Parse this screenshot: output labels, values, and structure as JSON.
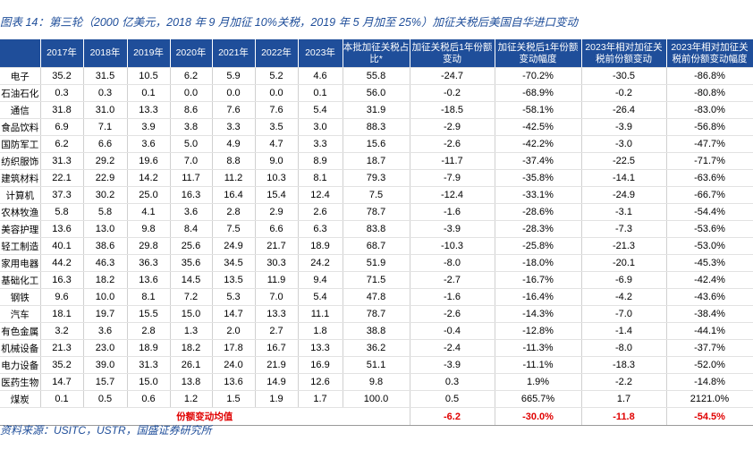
{
  "title": "图表 14：第三轮（2000 亿美元，2018 年 9 月加征 10%关税，2019 年 5 月加至 25%）加征关税后美国自华进口变动",
  "table": {
    "header": [
      "",
      "2017年",
      "2018年",
      "2019年",
      "2020年",
      "2021年",
      "2022年",
      "2023年",
      "本批加征关税占比*",
      "加征关税后1年份额变动",
      "加征关税后1年份额变动幅度",
      "2023年相对加征关税前份额变动",
      "2023年相对加征关税前份额变动幅度"
    ],
    "rows": [
      [
        "电子",
        "35.2",
        "31.5",
        "10.5",
        "6.2",
        "5.9",
        "5.2",
        "4.6",
        "55.8",
        "-24.7",
        "-70.2%",
        "-30.5",
        "-86.8%"
      ],
      [
        "石油石化",
        "0.3",
        "0.3",
        "0.1",
        "0.0",
        "0.0",
        "0.0",
        "0.1",
        "56.0",
        "-0.2",
        "-68.9%",
        "-0.2",
        "-80.8%"
      ],
      [
        "通信",
        "31.8",
        "31.0",
        "13.3",
        "8.6",
        "7.6",
        "7.6",
        "5.4",
        "31.9",
        "-18.5",
        "-58.1%",
        "-26.4",
        "-83.0%"
      ],
      [
        "食品饮料",
        "6.9",
        "7.1",
        "3.9",
        "3.8",
        "3.3",
        "3.5",
        "3.0",
        "88.3",
        "-2.9",
        "-42.5%",
        "-3.9",
        "-56.8%"
      ],
      [
        "国防军工",
        "6.2",
        "6.6",
        "3.6",
        "5.0",
        "4.9",
        "4.7",
        "3.3",
        "15.6",
        "-2.6",
        "-42.2%",
        "-3.0",
        "-47.7%"
      ],
      [
        "纺织服饰",
        "31.3",
        "29.2",
        "19.6",
        "7.0",
        "8.8",
        "9.0",
        "8.9",
        "18.7",
        "-11.7",
        "-37.4%",
        "-22.5",
        "-71.7%"
      ],
      [
        "建筑材料",
        "22.1",
        "22.9",
        "14.2",
        "11.7",
        "11.2",
        "10.3",
        "8.1",
        "79.3",
        "-7.9",
        "-35.8%",
        "-14.1",
        "-63.6%"
      ],
      [
        "计算机",
        "37.3",
        "30.2",
        "25.0",
        "16.3",
        "16.4",
        "15.4",
        "12.4",
        "7.5",
        "-12.4",
        "-33.1%",
        "-24.9",
        "-66.7%"
      ],
      [
        "农林牧渔",
        "5.8",
        "5.8",
        "4.1",
        "3.6",
        "2.8",
        "2.9",
        "2.6",
        "78.7",
        "-1.6",
        "-28.6%",
        "-3.1",
        "-54.4%"
      ],
      [
        "美容护理",
        "13.6",
        "13.0",
        "9.8",
        "8.4",
        "7.5",
        "6.6",
        "6.3",
        "83.8",
        "-3.9",
        "-28.3%",
        "-7.3",
        "-53.6%"
      ],
      [
        "轻工制造",
        "40.1",
        "38.6",
        "29.8",
        "25.6",
        "24.9",
        "21.7",
        "18.9",
        "68.7",
        "-10.3",
        "-25.8%",
        "-21.3",
        "-53.0%"
      ],
      [
        "家用电器",
        "44.2",
        "46.3",
        "36.3",
        "35.6",
        "34.5",
        "30.3",
        "24.2",
        "51.9",
        "-8.0",
        "-18.0%",
        "-20.1",
        "-45.3%"
      ],
      [
        "基础化工",
        "16.3",
        "18.2",
        "13.6",
        "14.5",
        "13.5",
        "11.9",
        "9.4",
        "71.5",
        "-2.7",
        "-16.7%",
        "-6.9",
        "-42.4%"
      ],
      [
        "钢铁",
        "9.6",
        "10.0",
        "8.1",
        "7.2",
        "5.3",
        "7.0",
        "5.4",
        "47.8",
        "-1.6",
        "-16.4%",
        "-4.2",
        "-43.6%"
      ],
      [
        "汽车",
        "18.1",
        "19.7",
        "15.5",
        "15.0",
        "14.7",
        "13.3",
        "11.1",
        "78.7",
        "-2.6",
        "-14.3%",
        "-7.0",
        "-38.4%"
      ],
      [
        "有色金属",
        "3.2",
        "3.6",
        "2.8",
        "1.3",
        "2.0",
        "2.7",
        "1.8",
        "38.8",
        "-0.4",
        "-12.8%",
        "-1.4",
        "-44.1%"
      ],
      [
        "机械设备",
        "21.3",
        "23.0",
        "18.9",
        "18.2",
        "17.8",
        "16.7",
        "13.3",
        "36.2",
        "-2.4",
        "-11.3%",
        "-8.0",
        "-37.7%"
      ],
      [
        "电力设备",
        "35.2",
        "39.0",
        "31.3",
        "26.1",
        "24.0",
        "21.9",
        "16.9",
        "51.1",
        "-3.9",
        "-11.1%",
        "-18.3",
        "-52.0%"
      ],
      [
        "医药生物",
        "14.7",
        "15.7",
        "15.0",
        "13.8",
        "13.6",
        "14.9",
        "12.6",
        "9.8",
        "0.3",
        "1.9%",
        "-2.2",
        "-14.8%"
      ],
      [
        "煤炭",
        "0.1",
        "0.5",
        "0.6",
        "1.2",
        "1.5",
        "1.9",
        "1.7",
        "100.0",
        "0.5",
        "665.7%",
        "1.7",
        "2121.0%"
      ]
    ],
    "footer": {
      "label": "份额变动均值",
      "values": [
        "-6.2",
        "-30.0%",
        "-11.8",
        "-54.5%"
      ]
    }
  },
  "source": "资料来源：USITC，USTR，国盛证券研究所"
}
